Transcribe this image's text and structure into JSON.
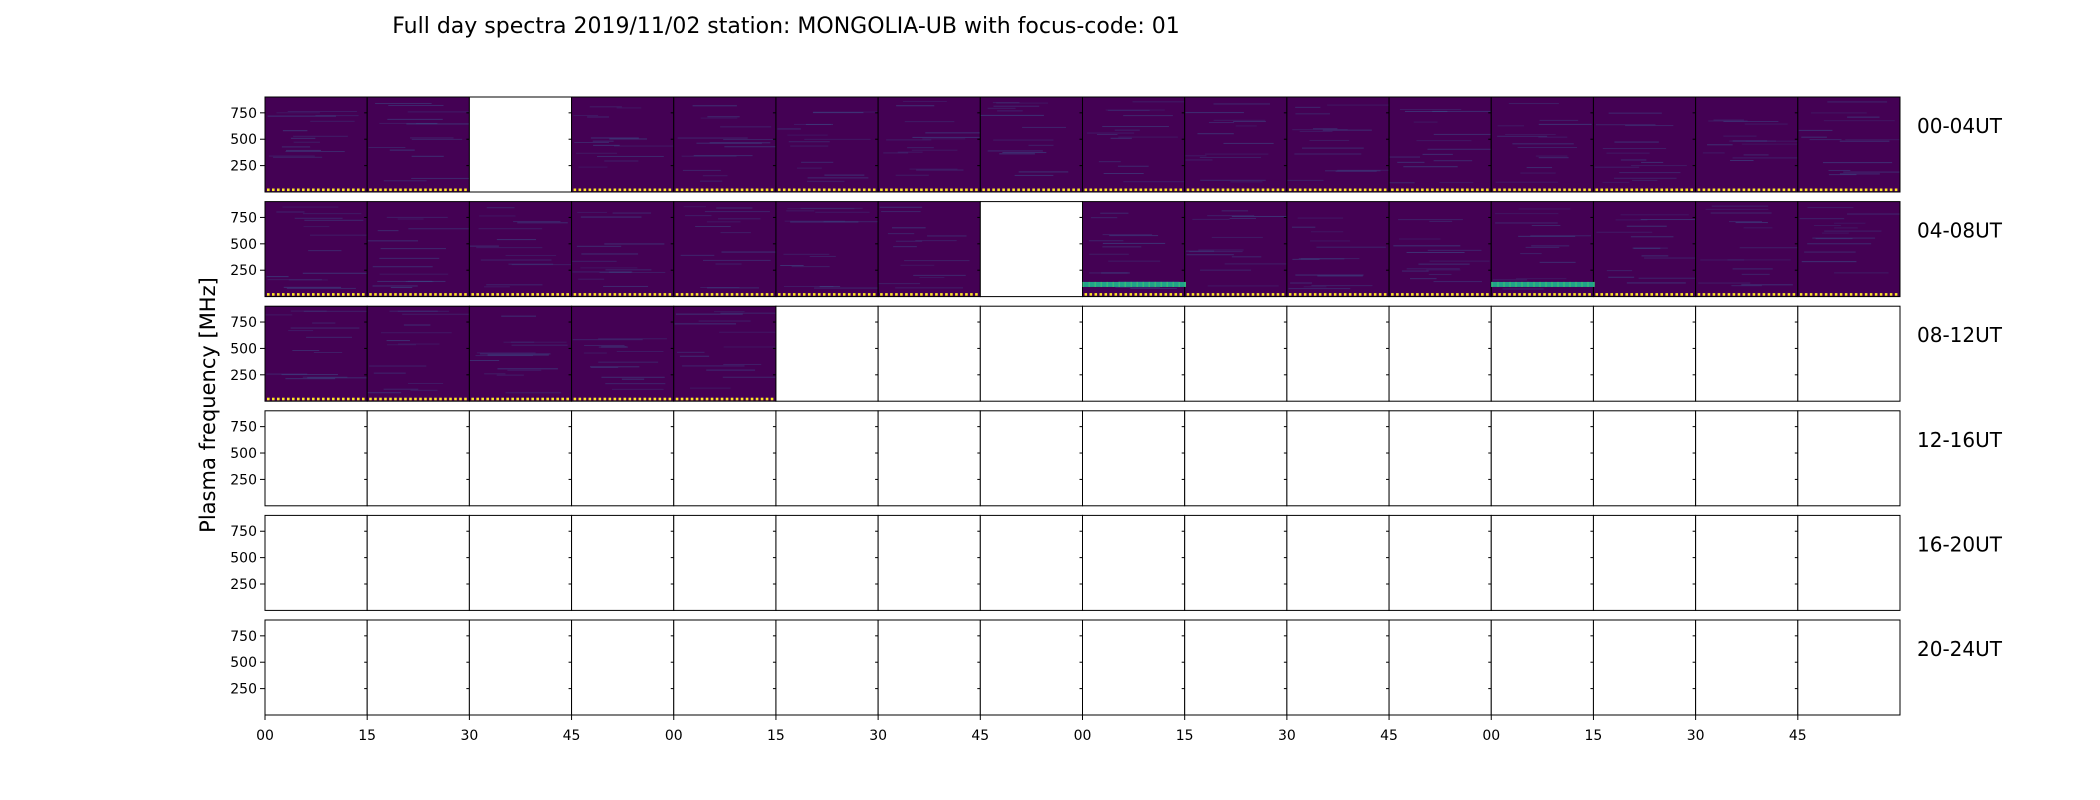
{
  "chart_data": {
    "type": "heatmap",
    "title": "Full day spectra 2019/11/02 station: MONGOLIA-UB with focus-code: 01",
    "ylabel": "Plasma frequency [MHz]",
    "y_ticks": [
      "750",
      "500",
      "250"
    ],
    "x_ticks": [
      "00",
      "15",
      "30",
      "45",
      "00",
      "15",
      "30",
      "45",
      "00",
      "15",
      "30",
      "45",
      "00",
      "15",
      "30",
      "45"
    ],
    "panels_per_row": 16,
    "colors": {
      "background": "#440154",
      "strip": "#fde725",
      "burst": "#21a38a",
      "empty": "#ffffff",
      "axis": "#000000"
    },
    "rows": [
      {
        "label": "00-04UT",
        "panels": [
          "data",
          "data",
          "empty",
          "data",
          "data",
          "data",
          "data",
          "data",
          "data",
          "data",
          "data",
          "data",
          "data",
          "data",
          "data",
          "data"
        ],
        "bursts": []
      },
      {
        "label": "04-08UT",
        "panels": [
          "data",
          "data",
          "data",
          "data",
          "data",
          "data",
          "data",
          "empty",
          "data",
          "data",
          "data",
          "data",
          "data",
          "data",
          "data",
          "data"
        ],
        "bursts": [
          {
            "panel": 8,
            "from": 0.0,
            "to": 1.0,
            "freq_mhz": 120
          },
          {
            "panel": 12,
            "from": 0.0,
            "to": 1.0,
            "freq_mhz": 120
          }
        ]
      },
      {
        "label": "08-12UT",
        "panels": [
          "data",
          "data",
          "data",
          "data",
          "data",
          "empty",
          "empty",
          "empty",
          "empty",
          "empty",
          "empty",
          "empty",
          "empty",
          "empty",
          "empty",
          "empty"
        ],
        "bursts": []
      },
      {
        "label": "12-16UT",
        "panels": [
          "empty",
          "empty",
          "empty",
          "empty",
          "empty",
          "empty",
          "empty",
          "empty",
          "empty",
          "empty",
          "empty",
          "empty",
          "empty",
          "empty",
          "empty",
          "empty"
        ],
        "bursts": []
      },
      {
        "label": "16-20UT",
        "panels": [
          "empty",
          "empty",
          "empty",
          "empty",
          "empty",
          "empty",
          "empty",
          "empty",
          "empty",
          "empty",
          "empty",
          "empty",
          "empty",
          "empty",
          "empty",
          "empty"
        ],
        "bursts": []
      },
      {
        "label": "20-24UT",
        "panels": [
          "empty",
          "empty",
          "empty",
          "empty",
          "empty",
          "empty",
          "empty",
          "empty",
          "empty",
          "empty",
          "empty",
          "empty",
          "empty",
          "empty",
          "empty",
          "empty"
        ],
        "bursts": []
      }
    ]
  }
}
